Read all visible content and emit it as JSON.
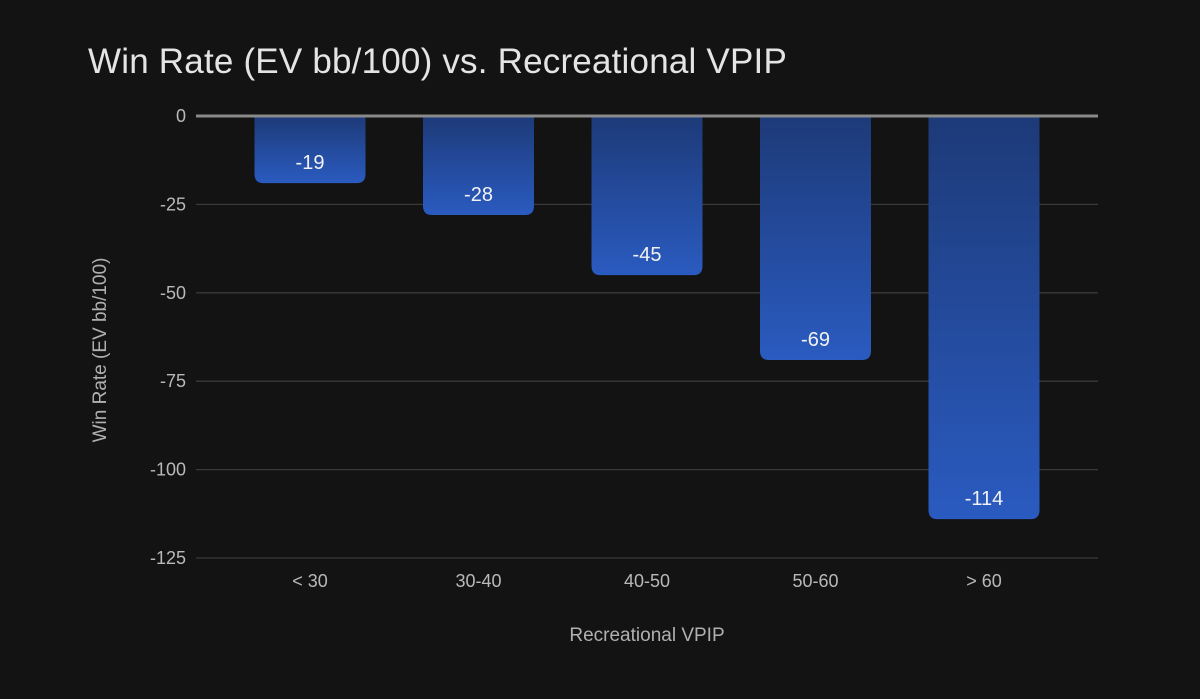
{
  "chart_data": {
    "type": "bar",
    "title": "Win Rate (EV bb/100) vs. Recreational VPIP",
    "xlabel": "Recreational VPIP",
    "ylabel": "Win Rate (EV bb/100)",
    "categories": [
      "< 30",
      "30-40",
      "40-50",
      "50-60",
      "> 60"
    ],
    "values": [
      -19,
      -28,
      -45,
      -69,
      -114
    ],
    "data_labels": [
      "-19",
      "-28",
      "-45",
      "-69",
      "-114"
    ],
    "yticks": [
      0,
      -25,
      -50,
      -75,
      -100,
      -125
    ],
    "ytick_labels": [
      "0",
      "-25",
      "-50",
      "-75",
      "-100",
      "-125"
    ],
    "ylim": [
      -125,
      0
    ],
    "grid": true,
    "legend": "none",
    "colors": {
      "background": "#131313",
      "bar_top": "#1d3a78",
      "bar_bottom": "#2a5bc0",
      "gridline": "#3a3a3a",
      "zero_line": "#8a8a8a"
    }
  }
}
